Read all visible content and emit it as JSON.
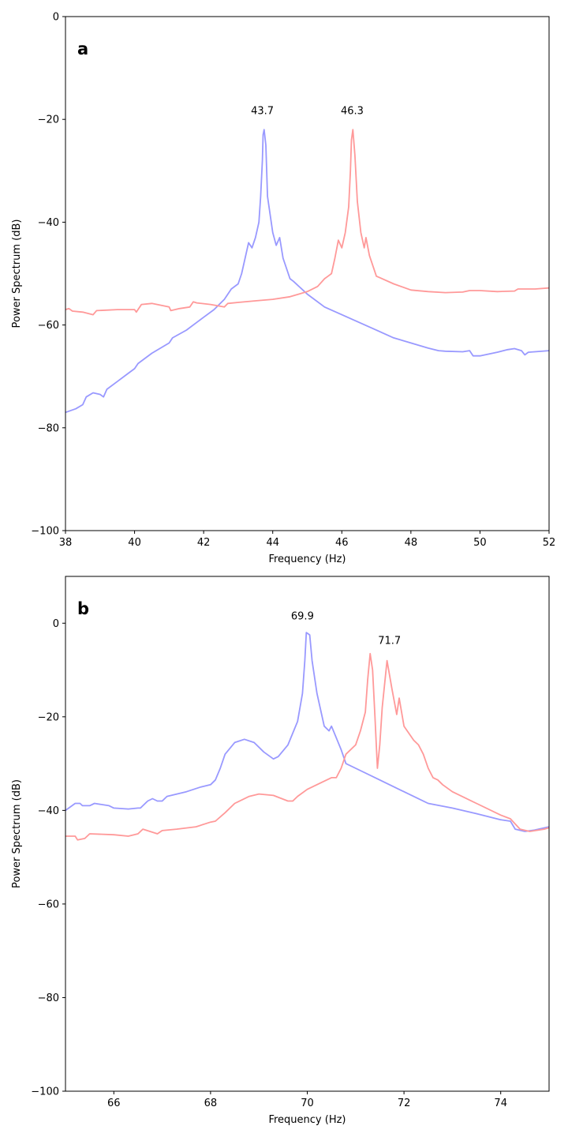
{
  "chart_data": [
    {
      "type": "line",
      "panel_label": "a",
      "xlabel": "Frequency (Hz)",
      "ylabel": "Power Spectrum (dB)",
      "xlim": [
        38,
        52
      ],
      "ylim": [
        -100,
        0
      ],
      "xticks": [
        38,
        40,
        42,
        44,
        46,
        48,
        50,
        52
      ],
      "yticks": [
        0,
        -20,
        -40,
        -60,
        -80,
        -100
      ],
      "xtick_labels": [
        "38",
        "40",
        "42",
        "44",
        "46",
        "48",
        "50",
        "52"
      ],
      "ytick_labels": [
        "0",
        "−20",
        "−40",
        "−60",
        "−80",
        "−100"
      ],
      "grid": false,
      "series": [
        {
          "name": "blue",
          "color": "#9999ff",
          "points": [
            [
              38,
              -77
            ],
            [
              38.3,
              -76.3
            ],
            [
              38.5,
              -75.5
            ],
            [
              38.6,
              -74
            ],
            [
              38.8,
              -73.2
            ],
            [
              39,
              -73.5
            ],
            [
              39.1,
              -74
            ],
            [
              39.2,
              -72.5
            ],
            [
              39.5,
              -71
            ],
            [
              39.8,
              -69.5
            ],
            [
              40,
              -68.5
            ],
            [
              40.1,
              -67.5
            ],
            [
              40.5,
              -65.5
            ],
            [
              41,
              -63.5
            ],
            [
              41.1,
              -62.5
            ],
            [
              41.5,
              -61
            ],
            [
              41.8,
              -59.5
            ],
            [
              42,
              -58.5
            ],
            [
              42.3,
              -57
            ],
            [
              42.6,
              -55
            ],
            [
              42.8,
              -53
            ],
            [
              43,
              -52
            ],
            [
              43.1,
              -50
            ],
            [
              43.3,
              -44
            ],
            [
              43.4,
              -45
            ],
            [
              43.5,
              -43
            ],
            [
              43.6,
              -40
            ],
            [
              43.65,
              -35
            ],
            [
              43.7,
              -28
            ],
            [
              43.72,
              -23
            ],
            [
              43.75,
              -22
            ],
            [
              43.8,
              -25
            ],
            [
              43.85,
              -35
            ],
            [
              44,
              -42
            ],
            [
              44.1,
              -44.5
            ],
            [
              44.2,
              -43
            ],
            [
              44.3,
              -47
            ],
            [
              44.5,
              -51
            ],
            [
              44.6,
              -51.5
            ],
            [
              45,
              -54
            ],
            [
              45.5,
              -56.5
            ],
            [
              46,
              -58
            ],
            [
              46.5,
              -59.5
            ],
            [
              47,
              -61
            ],
            [
              47.5,
              -62.5
            ],
            [
              48,
              -63.5
            ],
            [
              48.5,
              -64.5
            ],
            [
              48.8,
              -65
            ],
            [
              49,
              -65.1
            ],
            [
              49.5,
              -65.2
            ],
            [
              49.7,
              -65
            ],
            [
              49.8,
              -66
            ],
            [
              50,
              -66
            ],
            [
              50.5,
              -65.3
            ],
            [
              50.8,
              -64.8
            ],
            [
              51,
              -64.6
            ],
            [
              51.2,
              -65
            ],
            [
              51.3,
              -65.8
            ],
            [
              51.4,
              -65.3
            ],
            [
              52,
              -65
            ]
          ]
        },
        {
          "name": "red",
          "color": "#ff9999",
          "points": [
            [
              38,
              -57
            ],
            [
              38.1,
              -56.8
            ],
            [
              38.2,
              -57.3
            ],
            [
              38.5,
              -57.5
            ],
            [
              38.8,
              -58
            ],
            [
              38.9,
              -57.2
            ],
            [
              39.5,
              -57
            ],
            [
              40,
              -57
            ],
            [
              40.05,
              -57.5
            ],
            [
              40.2,
              -56
            ],
            [
              40.5,
              -55.8
            ],
            [
              41,
              -56.5
            ],
            [
              41.05,
              -57.2
            ],
            [
              41.3,
              -56.8
            ],
            [
              41.6,
              -56.5
            ],
            [
              41.7,
              -55.5
            ],
            [
              41.8,
              -55.7
            ],
            [
              42.2,
              -56
            ],
            [
              42.6,
              -56.5
            ],
            [
              42.7,
              -55.8
            ],
            [
              43,
              -55.6
            ],
            [
              43.5,
              -55.3
            ],
            [
              44,
              -55
            ],
            [
              44.5,
              -54.5
            ],
            [
              45,
              -53.5
            ],
            [
              45.3,
              -52.5
            ],
            [
              45.5,
              -51
            ],
            [
              45.6,
              -50.5
            ],
            [
              45.7,
              -50
            ],
            [
              45.8,
              -47
            ],
            [
              45.9,
              -43.5
            ],
            [
              46,
              -45
            ],
            [
              46.1,
              -42
            ],
            [
              46.2,
              -37
            ],
            [
              46.25,
              -30
            ],
            [
              46.28,
              -24
            ],
            [
              46.32,
              -22
            ],
            [
              46.38,
              -27
            ],
            [
              46.45,
              -36
            ],
            [
              46.55,
              -42
            ],
            [
              46.65,
              -45
            ],
            [
              46.7,
              -43
            ],
            [
              46.8,
              -46.5
            ],
            [
              47,
              -50.5
            ],
            [
              47.1,
              -50.8
            ],
            [
              47.5,
              -52
            ],
            [
              48,
              -53.2
            ],
            [
              48.5,
              -53.5
            ],
            [
              49,
              -53.7
            ],
            [
              49.5,
              -53.6
            ],
            [
              49.7,
              -53.3
            ],
            [
              50,
              -53.3
            ],
            [
              50.5,
              -53.5
            ],
            [
              51,
              -53.4
            ],
            [
              51.1,
              -53
            ],
            [
              51.6,
              -53
            ],
            [
              52,
              -52.8
            ]
          ]
        }
      ],
      "annotations": [
        {
          "text": "43.7",
          "x": 43.7,
          "y": -19
        },
        {
          "text": "46.3",
          "x": 46.3,
          "y": -19
        }
      ]
    },
    {
      "type": "line",
      "panel_label": "b",
      "xlabel": "Frequency (Hz)",
      "ylabel": "Power Spectrum (dB)",
      "xlim": [
        65,
        75
      ],
      "ylim": [
        -100,
        10
      ],
      "xticks": [
        66,
        68,
        70,
        72,
        74
      ],
      "yticks": [
        0,
        -20,
        -40,
        -60,
        -80,
        -100
      ],
      "xtick_labels": [
        "66",
        "68",
        "70",
        "72",
        "74"
      ],
      "ytick_labels": [
        "0",
        "−20",
        "−40",
        "−60",
        "−80",
        "−100"
      ],
      "grid": false,
      "series": [
        {
          "name": "blue",
          "color": "#9999ff",
          "points": [
            [
              65,
              -40
            ],
            [
              65.2,
              -38.5
            ],
            [
              65.3,
              -38.5
            ],
            [
              65.35,
              -39
            ],
            [
              65.5,
              -39
            ],
            [
              65.6,
              -38.5
            ],
            [
              65.9,
              -39
            ],
            [
              66,
              -39.5
            ],
            [
              66.3,
              -39.7
            ],
            [
              66.5,
              -39.5
            ],
            [
              66.55,
              -39.5
            ],
            [
              66.7,
              -38
            ],
            [
              66.8,
              -37.5
            ],
            [
              66.9,
              -38
            ],
            [
              67,
              -38
            ],
            [
              67.1,
              -37
            ],
            [
              67.5,
              -36
            ],
            [
              67.8,
              -35
            ],
            [
              68,
              -34.5
            ],
            [
              68.1,
              -33.5
            ],
            [
              68.2,
              -31
            ],
            [
              68.3,
              -28
            ],
            [
              68.5,
              -25.5
            ],
            [
              68.7,
              -24.8
            ],
            [
              68.9,
              -25.5
            ],
            [
              69.1,
              -27.5
            ],
            [
              69.3,
              -29
            ],
            [
              69.4,
              -28.5
            ],
            [
              69.6,
              -26
            ],
            [
              69.8,
              -21
            ],
            [
              69.9,
              -15
            ],
            [
              69.95,
              -8
            ],
            [
              69.98,
              -2
            ],
            [
              70.05,
              -2.5
            ],
            [
              70.1,
              -8
            ],
            [
              70.2,
              -15
            ],
            [
              70.35,
              -22
            ],
            [
              70.45,
              -23
            ],
            [
              70.5,
              -22
            ],
            [
              70.7,
              -27
            ],
            [
              70.8,
              -30
            ],
            [
              71,
              -31
            ],
            [
              71.5,
              -33.5
            ],
            [
              72,
              -36
            ],
            [
              72.5,
              -38.5
            ],
            [
              73,
              -39.5
            ],
            [
              73.5,
              -40.7
            ],
            [
              74,
              -42
            ],
            [
              74.2,
              -42.3
            ],
            [
              74.3,
              -44
            ],
            [
              74.5,
              -44.5
            ],
            [
              74.7,
              -44.2
            ],
            [
              75,
              -43.5
            ]
          ]
        },
        {
          "name": "red",
          "color": "#ff9999",
          "points": [
            [
              65,
              -45.5
            ],
            [
              65.2,
              -45.5
            ],
            [
              65.25,
              -46.3
            ],
            [
              65.4,
              -46
            ],
            [
              65.5,
              -45
            ],
            [
              66,
              -45.2
            ],
            [
              66.3,
              -45.5
            ],
            [
              66.5,
              -45
            ],
            [
              66.6,
              -44
            ],
            [
              66.9,
              -45
            ],
            [
              67,
              -44.3
            ],
            [
              67.3,
              -44
            ],
            [
              67.7,
              -43.5
            ],
            [
              68,
              -42.5
            ],
            [
              68.1,
              -42.3
            ],
            [
              68.3,
              -40.5
            ],
            [
              68.5,
              -38.5
            ],
            [
              68.8,
              -37
            ],
            [
              69,
              -36.5
            ],
            [
              69.3,
              -36.8
            ],
            [
              69.6,
              -38
            ],
            [
              69.7,
              -38
            ],
            [
              69.8,
              -37
            ],
            [
              70,
              -35.5
            ],
            [
              70.3,
              -34
            ],
            [
              70.5,
              -33
            ],
            [
              70.6,
              -33
            ],
            [
              70.7,
              -31
            ],
            [
              70.8,
              -28
            ],
            [
              71,
              -26
            ],
            [
              71.1,
              -23
            ],
            [
              71.2,
              -19
            ],
            [
              71.25,
              -12
            ],
            [
              71.3,
              -6.5
            ],
            [
              71.35,
              -10
            ],
            [
              71.4,
              -20
            ],
            [
              71.45,
              -31
            ],
            [
              71.5,
              -26
            ],
            [
              71.55,
              -18
            ],
            [
              71.65,
              -8
            ],
            [
              71.75,
              -14
            ],
            [
              71.85,
              -19.5
            ],
            [
              71.9,
              -16
            ],
            [
              72,
              -22
            ],
            [
              72.2,
              -25
            ],
            [
              72.3,
              -26
            ],
            [
              72.4,
              -28
            ],
            [
              72.5,
              -31
            ],
            [
              72.6,
              -33
            ],
            [
              72.7,
              -33.5
            ],
            [
              72.8,
              -34.5
            ],
            [
              73,
              -36
            ],
            [
              73.5,
              -38.5
            ],
            [
              74,
              -41
            ],
            [
              74.2,
              -41.8
            ],
            [
              74.4,
              -44
            ],
            [
              74.6,
              -44.5
            ],
            [
              74.9,
              -44
            ],
            [
              75,
              -43.7
            ]
          ]
        }
      ],
      "annotations": [
        {
          "text": "69.9",
          "x": 69.9,
          "y": 0.8
        },
        {
          "text": "71.7",
          "x": 71.7,
          "y": -4.4
        }
      ]
    }
  ]
}
